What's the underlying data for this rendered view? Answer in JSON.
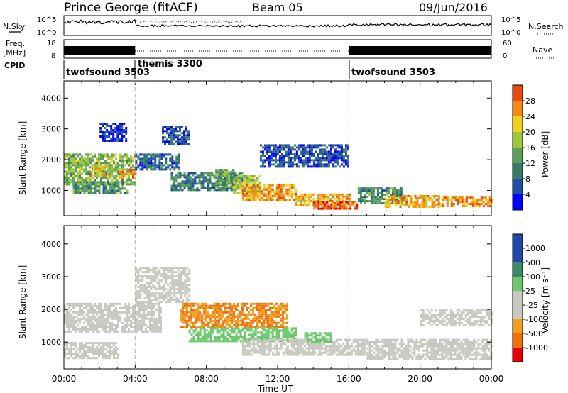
{
  "header": {
    "title": "Prince George (fitACF)",
    "beam": "Beam 05",
    "date": "09/Jun/2016"
  },
  "noise_panel": {
    "left_label": "N.Sky",
    "right_label": "N.Search",
    "left_ticks": [
      "10^5",
      "10^0"
    ],
    "right_ticks": [
      "10^5",
      "10^0"
    ]
  },
  "freq_panel": {
    "left_label_1": "Freq.",
    "left_label_2": "[MHz]",
    "right_label": "Nave",
    "left_ticks": [
      "18",
      "8"
    ],
    "right_ticks": [
      "60",
      "0"
    ]
  },
  "cpid_panel": {
    "label": "CPID",
    "segments": [
      {
        "name": "twofsound 3503",
        "start_h": 0,
        "end_h": 4
      },
      {
        "name": "themis 3300",
        "start_h": 4,
        "end_h": 16
      },
      {
        "name": "twofsound 3503",
        "start_h": 16,
        "end_h": 24
      }
    ]
  },
  "colors": {
    "power": [
      "#0000ff",
      "#1f4fa0",
      "#3a7a6a",
      "#5aa05a",
      "#9ec83c",
      "#f0d21e",
      "#f08c14",
      "#e84a10",
      "#e60000"
    ],
    "velocity": [
      "#1f48a8",
      "#3a6aa0",
      "#3a8a6a",
      "#6ac86a",
      "#c8c8c0",
      "#c8c8c0",
      "#f0a020",
      "#f07010",
      "#e84010",
      "#e60000"
    ]
  },
  "chart_data": [
    {
      "type": "heatmap",
      "panel": "power",
      "xlabel": "",
      "ylabel": "Slant Range [km]",
      "xlim": [
        0,
        24
      ],
      "ylim": [
        180,
        4560
      ],
      "yticks": [
        "1000",
        "2000",
        "3000",
        "4000"
      ],
      "colorbar": {
        "label": "Power [dB]",
        "range": [
          0,
          32
        ],
        "ticks": [
          "4",
          "8",
          "12",
          "16",
          "20",
          "24",
          "28"
        ]
      },
      "regions": [
        {
          "x": [
            0.0,
            4.0
          ],
          "y": [
            1200,
            2200
          ],
          "value": 16
        },
        {
          "x": [
            0.5,
            3.5
          ],
          "y": [
            900,
            1300
          ],
          "value": 12
        },
        {
          "x": [
            1.5,
            2.5
          ],
          "y": [
            1500,
            1800
          ],
          "value": 22
        },
        {
          "x": [
            3.0,
            4.0
          ],
          "y": [
            1400,
            1700
          ],
          "value": 26
        },
        {
          "x": [
            4.0,
            6.5
          ],
          "y": [
            1700,
            2200
          ],
          "value": 8
        },
        {
          "x": [
            5.5,
            7.0
          ],
          "y": [
            2500,
            3100
          ],
          "value": 6
        },
        {
          "x": [
            6.0,
            10.0
          ],
          "y": [
            1000,
            1600
          ],
          "value": 10
        },
        {
          "x": [
            8.5,
            9.5
          ],
          "y": [
            1100,
            1700
          ],
          "value": 14
        },
        {
          "x": [
            9.5,
            11.0
          ],
          "y": [
            900,
            1500
          ],
          "value": 18
        },
        {
          "x": [
            10.0,
            13.0
          ],
          "y": [
            700,
            1200
          ],
          "value": 26
        },
        {
          "x": [
            13.0,
            16.0
          ],
          "y": [
            500,
            900
          ],
          "value": 24
        },
        {
          "x": [
            14.0,
            16.5
          ],
          "y": [
            400,
            650
          ],
          "value": 30
        },
        {
          "x": [
            16.5,
            19.0
          ],
          "y": [
            600,
            1100
          ],
          "value": 12
        },
        {
          "x": [
            18.0,
            21.0
          ],
          "y": [
            450,
            850
          ],
          "value": 24
        },
        {
          "x": [
            21.0,
            24.0
          ],
          "y": [
            500,
            800
          ],
          "value": 26
        },
        {
          "x": [
            11.0,
            16.0
          ],
          "y": [
            1800,
            2500
          ],
          "value": 6
        },
        {
          "x": [
            2.0,
            3.5
          ],
          "y": [
            2600,
            3200
          ],
          "value": 4
        }
      ]
    },
    {
      "type": "heatmap",
      "panel": "velocity",
      "xlabel": "Time UT",
      "ylabel": "Slant Range [km]",
      "xlim": [
        0,
        24
      ],
      "ylim": [
        180,
        4560
      ],
      "xticks": [
        "00:00",
        "04:00",
        "08:00",
        "12:00",
        "16:00",
        "20:00",
        "00:00"
      ],
      "yticks": [
        "1000",
        "2000",
        "3000",
        "4000"
      ],
      "colorbar": {
        "label": "Velocity [m s⁻¹]",
        "ticks": [
          "1000",
          "500",
          "100",
          "25",
          "-25",
          "-100",
          "-500",
          "-1000"
        ]
      },
      "regions": [
        {
          "x": [
            0.0,
            5.5
          ],
          "y": [
            1300,
            2200
          ],
          "value": 0
        },
        {
          "x": [
            4.0,
            7.0
          ],
          "y": [
            2200,
            3300
          ],
          "value": 0
        },
        {
          "x": [
            6.5,
            12.5
          ],
          "y": [
            1450,
            2200
          ],
          "value": -300
        },
        {
          "x": [
            7.0,
            13.0
          ],
          "y": [
            1050,
            1450
          ],
          "value": 150
        },
        {
          "x": [
            10.0,
            17.0
          ],
          "y": [
            600,
            1100
          ],
          "value": 0
        },
        {
          "x": [
            17.0,
            24.0
          ],
          "y": [
            450,
            1100
          ],
          "value": 0
        },
        {
          "x": [
            0.0,
            3.0
          ],
          "y": [
            500,
            1000
          ],
          "value": 0
        },
        {
          "x": [
            13.5,
            15.0
          ],
          "y": [
            1000,
            1300
          ],
          "value": 120
        },
        {
          "x": [
            20.0,
            24.0
          ],
          "y": [
            1500,
            2000
          ],
          "value": 0
        }
      ]
    }
  ]
}
